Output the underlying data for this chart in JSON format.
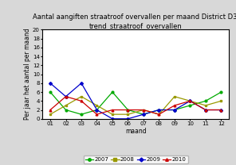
{
  "title": "Aantal aangiften straatroof overvallen per maand District D3:\ntrend_straatroof_overvallen",
  "xlabel": "maand",
  "ylabel": "Per jaar het aantal per maand",
  "months": [
    "01",
    "02",
    "03",
    "04",
    "05",
    "06",
    "07",
    "08",
    "09",
    "10",
    "11",
    "12"
  ],
  "series": {
    "2007": [
      6,
      2,
      1,
      2,
      6,
      2,
      1,
      2,
      2,
      3,
      4,
      6
    ],
    "2008": [
      1,
      3,
      5,
      3,
      1,
      1,
      2,
      1,
      5,
      4,
      3,
      4
    ],
    "2009": [
      8,
      5,
      8,
      2,
      0,
      0,
      1,
      2,
      2,
      4,
      2,
      2
    ],
    "2010": [
      2,
      5,
      4,
      1,
      2,
      2,
      2,
      1,
      3,
      4,
      2,
      2
    ]
  },
  "colors": {
    "2007": "#00aa00",
    "2008": "#999900",
    "2009": "#0000cc",
    "2010": "#cc0000"
  },
  "ylim": [
    0,
    20
  ],
  "yticks": [
    0,
    2,
    4,
    6,
    8,
    10,
    12,
    14,
    16,
    18,
    20
  ],
  "legend_labels": [
    "2007",
    "2008",
    "2009",
    "2010"
  ],
  "title_fontsize": 6.0,
  "axis_fontsize": 5.5,
  "tick_fontsize": 5.0,
  "legend_fontsize": 5.0,
  "bg_color": "#d8d8d8",
  "plot_bg_color": "#ffffff"
}
